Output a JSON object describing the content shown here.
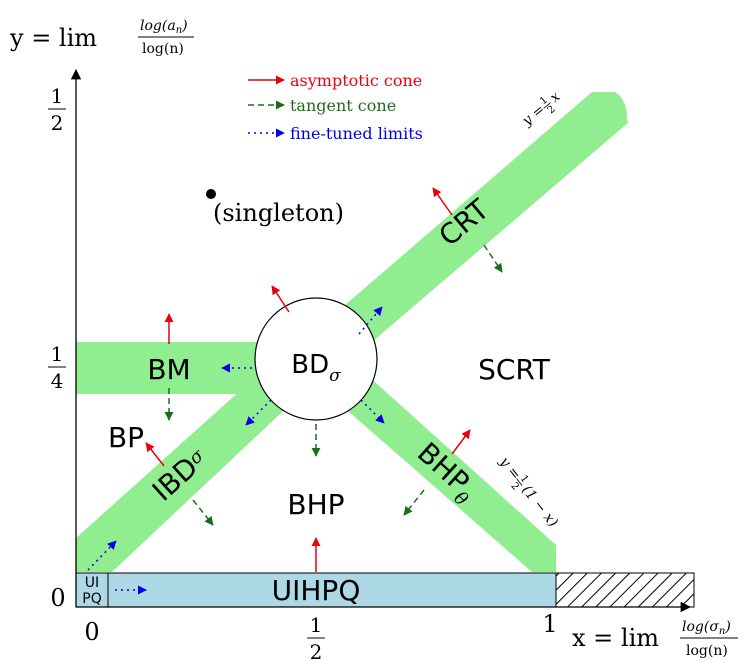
{
  "axes": {
    "y_label_lhs": "y = lim",
    "y_label_num": "log(a",
    "y_label_num_sub": "n",
    "y_label_num_close": ")",
    "y_label_den": "log(n)",
    "x_label_lhs": "x = lim",
    "x_label_num": "log(σ",
    "x_label_num_sub": "n",
    "x_label_num_close": ")",
    "x_label_den": "log(n)",
    "y_tick_half_num": "1",
    "y_tick_half_den": "2",
    "y_tick_quarter_num": "1",
    "y_tick_quarter_den": "4",
    "y_tick_zero": "0",
    "x_tick_zero": "0",
    "x_tick_half_num": "1",
    "x_tick_half_den": "2",
    "x_tick_one": "1"
  },
  "legend": {
    "asymptotic": {
      "label": "asymptotic cone",
      "color": "#e8000b"
    },
    "tangent": {
      "label": "tangent cone",
      "color": "#1a6e1a"
    },
    "fine": {
      "label": "fine-tuned limits",
      "color": "#0000e6"
    }
  },
  "colors": {
    "band_green": "#90ee90",
    "band_blue": "#add8e6"
  },
  "regions": {
    "singleton": "(singleton)",
    "bd": "BD",
    "bd_sub": "σ",
    "crt": "CRT",
    "bm": "BM",
    "scrt": "SCRT",
    "bp": "BP",
    "ibd": "IBD",
    "ibd_sub": "σ",
    "bhp_theta": "BHP",
    "bhp_theta_sub": "θ",
    "bhp": "BHP",
    "uihpq": "UIHPQ",
    "ui": "UI",
    "pq": "PQ"
  },
  "line_labels": {
    "diag_lhs": "y =",
    "diag_frac_num": "1",
    "diag_frac_den": "2",
    "diag_rhs": "x",
    "anti_lhs": "y =",
    "anti_frac_num": "1",
    "anti_frac_den": "2",
    "anti_rhs": "(1 − x)"
  }
}
